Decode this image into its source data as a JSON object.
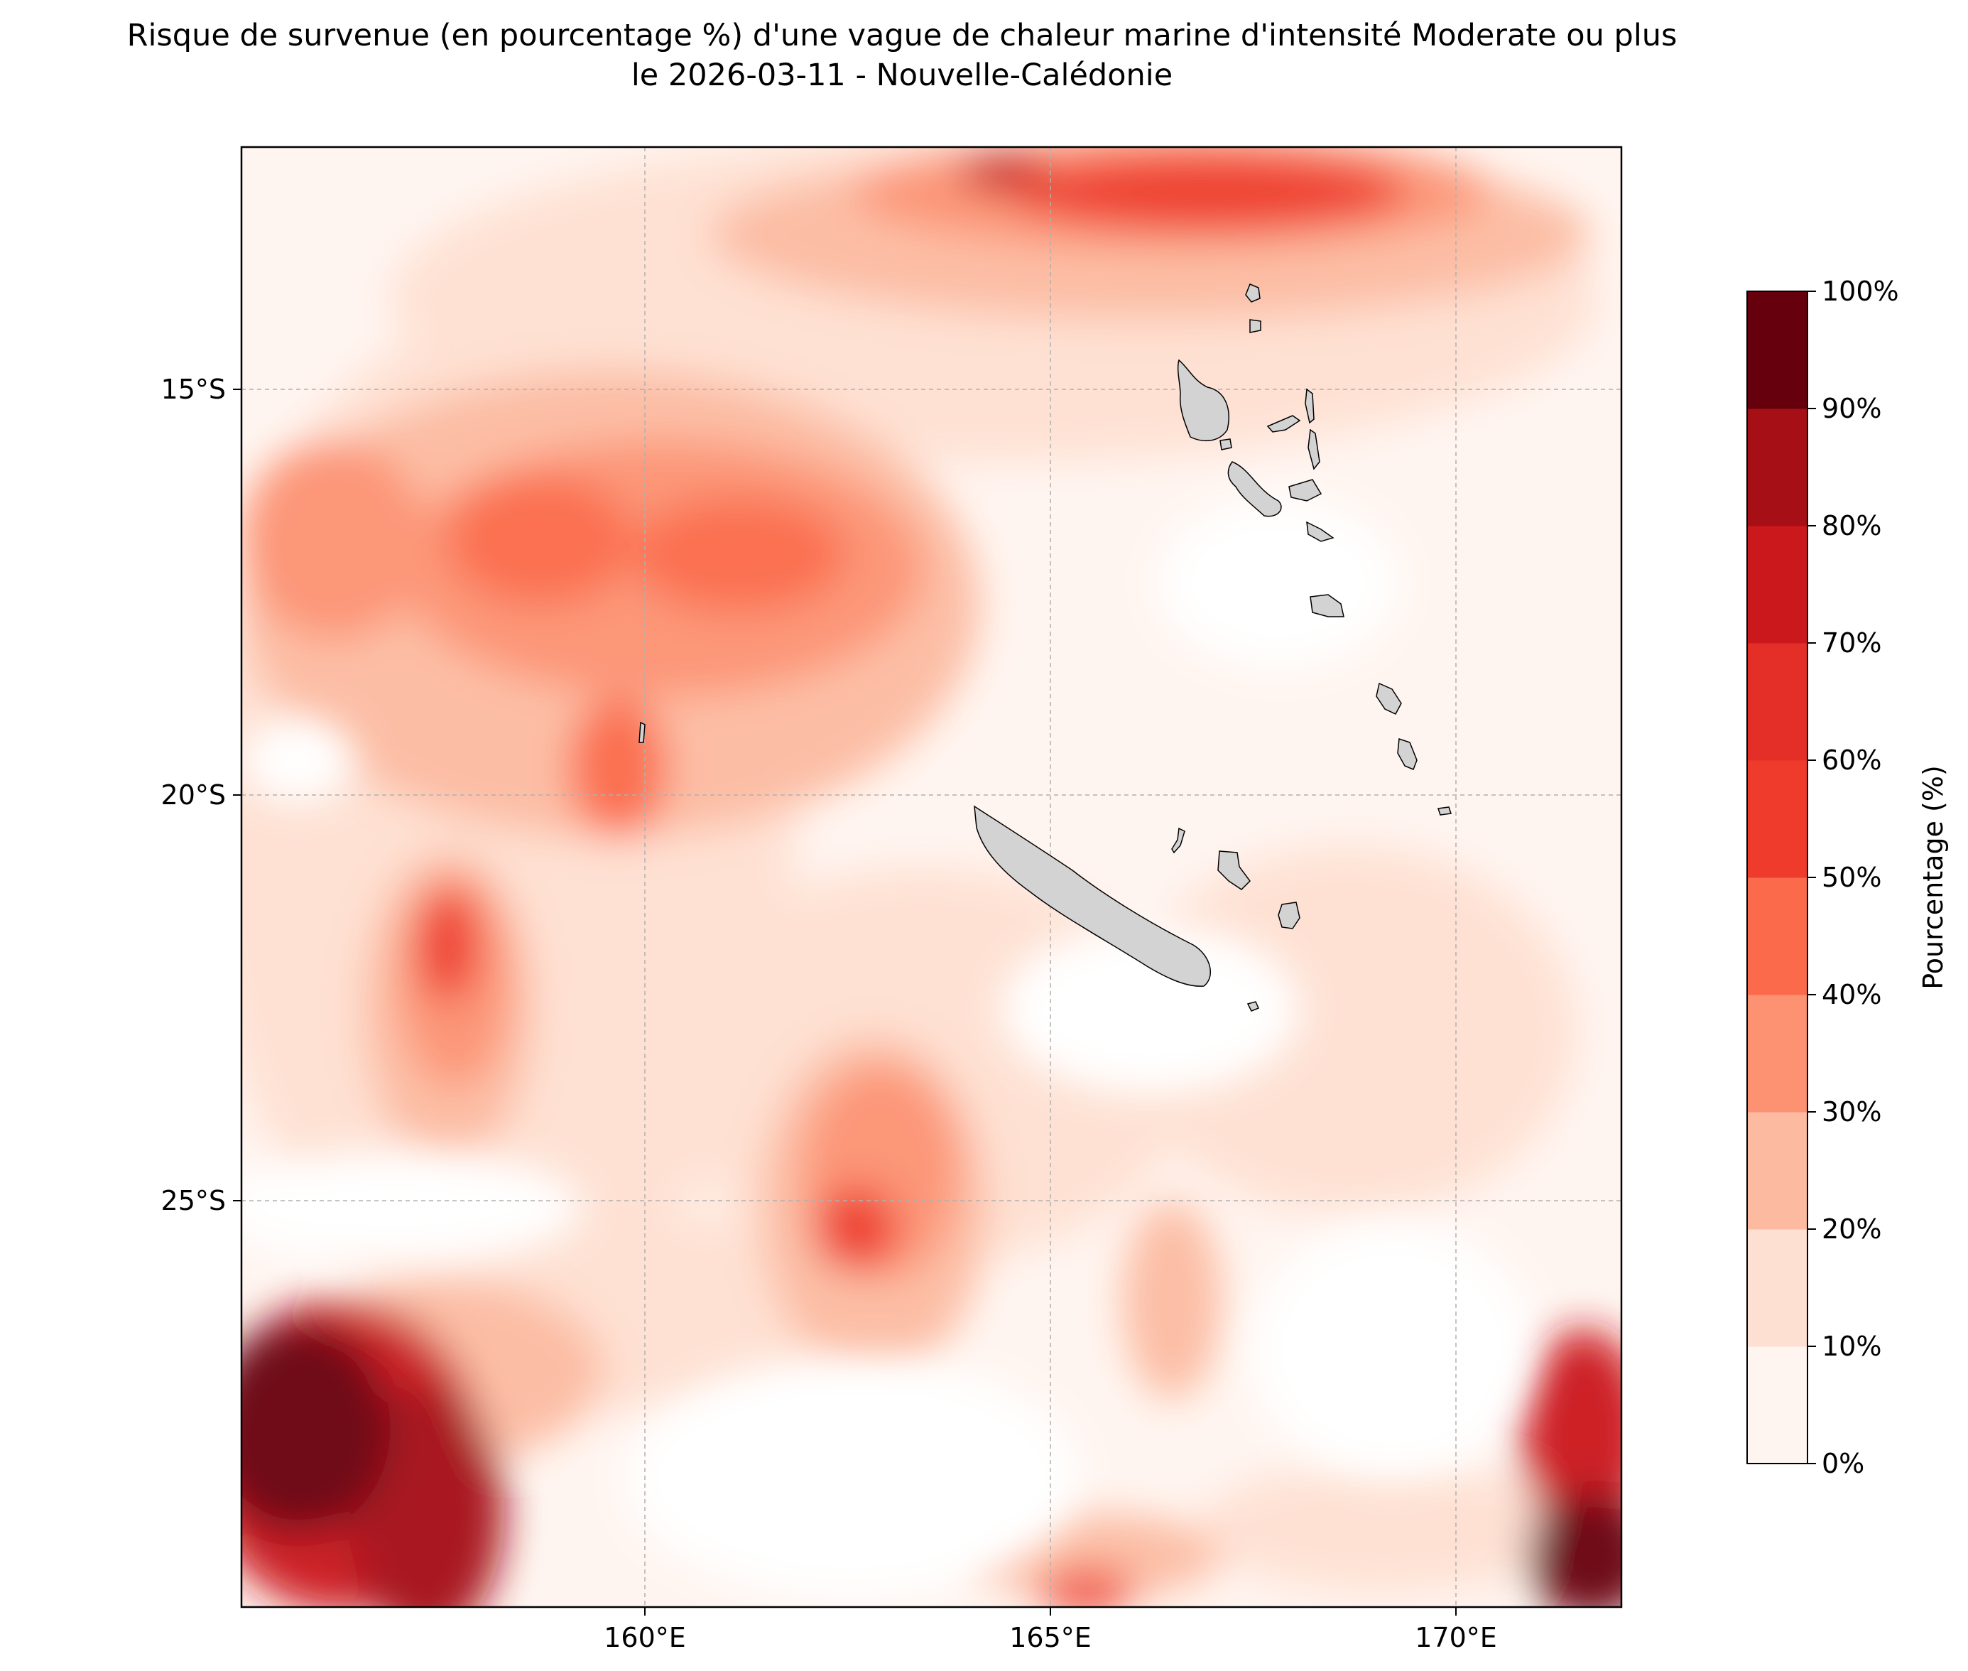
{
  "title": {
    "line1": "Risque de survenue (en pourcentage %) d'une vague de chaleur marine d'intensité Moderate ou plus",
    "line2": "le 2026-03-11 - Nouvelle-Calédonie"
  },
  "map": {
    "extent": {
      "lon_min": 155.0,
      "lon_max": 172.0,
      "lat_min": -30.0,
      "lat_max": -12.0
    },
    "lon_ticks": [
      {
        "value": 160,
        "label": "160°E"
      },
      {
        "value": 165,
        "label": "165°E"
      },
      {
        "value": 170,
        "label": "170°E"
      }
    ],
    "lat_ticks": [
      {
        "value": -15,
        "label": "15°S"
      },
      {
        "value": -20,
        "label": "20°S"
      },
      {
        "value": -25,
        "label": "25°S"
      }
    ],
    "gridlines": true,
    "land_color": "#d3d3d3"
  },
  "colorbar": {
    "label": "Pourcentage (%)",
    "levels": [
      "0%",
      "10%",
      "20%",
      "30%",
      "40%",
      "50%",
      "60%",
      "70%",
      "80%",
      "90%",
      "100%"
    ],
    "colors": [
      "#fff5f0",
      "#fee0d2",
      "#fcbba1",
      "#fc9272",
      "#fb6a4a",
      "#ef3b2c",
      "#e32f27",
      "#cb181d",
      "#a50f15",
      "#67000d"
    ]
  },
  "risk_areas": [
    {
      "name": "nw-zone",
      "lon": 160.5,
      "lat": -17.5,
      "rx": 4.0,
      "ry": 2.6,
      "level": 3
    },
    {
      "name": "north-band",
      "lon": 166.0,
      "lat": -12.6,
      "rx": 5.5,
      "ry": 1.1,
      "level": 3
    },
    {
      "name": "north-core",
      "lon": 167.3,
      "lat": -12.6,
      "rx": 1.6,
      "ry": 0.6,
      "level": 6
    },
    {
      "name": "center-left",
      "lon": 161.2,
      "lat": -16.9,
      "rx": 1.0,
      "ry": 0.6,
      "level": 5
    },
    {
      "name": "west-strip",
      "lon": 157.4,
      "lat": -21.8,
      "rx": 0.6,
      "ry": 1.2,
      "level": 5
    },
    {
      "name": "central-south",
      "lon": 162.8,
      "lat": -25.2,
      "rx": 1.0,
      "ry": 1.4,
      "level": 4
    },
    {
      "name": "sw-corner",
      "lon": 156.2,
      "lat": -28.2,
      "rx": 1.6,
      "ry": 1.6,
      "level": 9
    },
    {
      "name": "se-corner",
      "lon": 171.5,
      "lat": -28.6,
      "rx": 0.8,
      "ry": 1.4,
      "level": 8
    },
    {
      "name": "south-band",
      "lon": 165.5,
      "lat": -29.8,
      "rx": 1.2,
      "ry": 0.4,
      "level": 5
    }
  ]
}
